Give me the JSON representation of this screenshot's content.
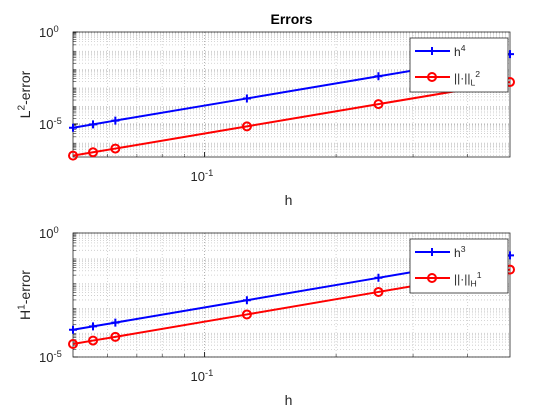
{
  "chart_data": [
    {
      "type": "line",
      "title": "Errors",
      "xlabel": "h",
      "ylabel": [
        {
          "text": "L"
        },
        {
          "text": "2",
          "sup": true
        },
        {
          "text": "-error"
        }
      ],
      "x": [
        0.5,
        0.25,
        0.125,
        0.0625,
        0.05556,
        0.05
      ],
      "xscale": "log",
      "yscale": "log",
      "xlim": [
        0.05,
        0.5
      ],
      "xticks": [
        {
          "value": 0.1,
          "label": [
            {
              "text": "10"
            },
            {
              "text": "-1",
              "sup": true
            }
          ]
        }
      ],
      "ylim": [
        1.6e-07,
        1
      ],
      "yticks": [
        {
          "value": 1e-05,
          "label": [
            {
              "text": "10"
            },
            {
              "text": "-5",
              "sup": true
            }
          ]
        },
        {
          "value": 1,
          "label": [
            {
              "text": "10"
            },
            {
              "text": "0",
              "sup": true
            }
          ]
        }
      ],
      "grid": true,
      "minor_grid": true,
      "legend": "upper right",
      "series": [
        {
          "name": [
            {
              "text": "h"
            },
            {
              "text": "4",
              "sup": true
            }
          ],
          "color": "#0000ff",
          "marker": "+",
          "values": [
            0.0625,
            0.00391,
            0.000244,
            1.53e-05,
            9.5e-06,
            6.25e-06
          ]
        },
        {
          "name": [
            {
              "text": "||·||"
            },
            {
              "text": "L",
              "sub": true
            },
            {
              "text": "2",
              "sup": true
            }
          ],
          "color": "#ff0000",
          "marker": "o",
          "values": [
            0.0019,
            0.00012,
            7.4e-06,
            4.6e-07,
            2.9e-07,
            1.9e-07
          ]
        }
      ]
    },
    {
      "type": "line",
      "xlabel": "h",
      "ylabel": [
        {
          "text": "H"
        },
        {
          "text": "1",
          "sup": true
        },
        {
          "text": "-error"
        }
      ],
      "x": [
        0.5,
        0.25,
        0.125,
        0.0625,
        0.05556,
        0.05
      ],
      "xscale": "log",
      "yscale": "log",
      "xlim": [
        0.05,
        0.5
      ],
      "xticks": [
        {
          "value": 0.1,
          "label": [
            {
              "text": "10"
            },
            {
              "text": "-1",
              "sup": true
            }
          ]
        }
      ],
      "ylim": [
        1e-05,
        1
      ],
      "yticks": [
        {
          "value": 1e-05,
          "label": [
            {
              "text": "10"
            },
            {
              "text": "-5",
              "sup": true
            }
          ]
        },
        {
          "value": 1,
          "label": [
            {
              "text": "10"
            },
            {
              "text": "0",
              "sup": true
            }
          ]
        }
      ],
      "grid": true,
      "minor_grid": true,
      "legend": "upper right",
      "series": [
        {
          "name": [
            {
              "text": "h"
            },
            {
              "text": "3",
              "sup": true
            }
          ],
          "color": "#0000ff",
          "marker": "+",
          "values": [
            0.125,
            0.0156,
            0.00195,
            0.000244,
            0.000171,
            0.000125
          ]
        },
        {
          "name": [
            {
              "text": "||·||"
            },
            {
              "text": "H",
              "sub": true
            },
            {
              "text": "1",
              "sup": true
            }
          ],
          "color": "#ff0000",
          "marker": "o",
          "values": [
            0.0335,
            0.0042,
            0.00052,
            6.5e-05,
            4.6e-05,
            3.35e-05
          ]
        }
      ]
    }
  ]
}
